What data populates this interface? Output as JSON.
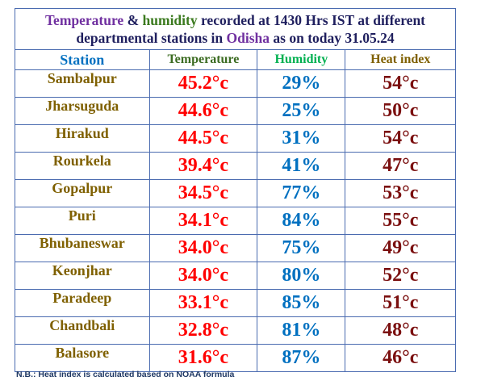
{
  "title": {
    "line1_part1": "Temperature",
    "line1_amp1": " & ",
    "line1_part2": "humidity",
    "line1_rest": " recorded at 1430 Hrs IST at different",
    "line2_part1": "departmental stations in ",
    "line2_state": "Odisha",
    "line2_rest": " as on today 31.05.24"
  },
  "headers": {
    "station": "Station",
    "temperature": "Temperature",
    "humidity": "Humidity",
    "heat_index": "Heat index"
  },
  "rows": [
    {
      "station": "Sambalpur",
      "temperature": "45.2°c",
      "humidity": "29%",
      "heat_index": "54°c"
    },
    {
      "station": "Jharsuguda",
      "temperature": "44.6°c",
      "humidity": "25%",
      "heat_index": "50°c"
    },
    {
      "station": "Hirakud",
      "temperature": "44.5°c",
      "humidity": "31%",
      "heat_index": "54°c"
    },
    {
      "station": "Rourkela",
      "temperature": "39.4°c",
      "humidity": "41%",
      "heat_index": "47°c"
    },
    {
      "station": "Gopalpur",
      "temperature": "34.5°c",
      "humidity": "77%",
      "heat_index": "53°c"
    },
    {
      "station": "Puri",
      "temperature": "34.1°c",
      "humidity": "84%",
      "heat_index": "55°c"
    },
    {
      "station": "Bhubaneswar",
      "temperature": "34.0°c",
      "humidity": "75%",
      "heat_index": "49°c"
    },
    {
      "station": "Keonjhar",
      "temperature": "34.0°c",
      "humidity": "80%",
      "heat_index": "52°c"
    },
    {
      "station": "Paradeep",
      "temperature": "33.1°c",
      "humidity": "85%",
      "heat_index": "51°c"
    },
    {
      "station": "Chandbali",
      "temperature": "32.8°c",
      "humidity": "81%",
      "heat_index": "48°c"
    },
    {
      "station": "Balasore",
      "temperature": "31.6°c",
      "humidity": "87%",
      "heat_index": "46°c"
    }
  ],
  "footnote": "N.B.: Heat index is calculated based on NOAA formula"
}
